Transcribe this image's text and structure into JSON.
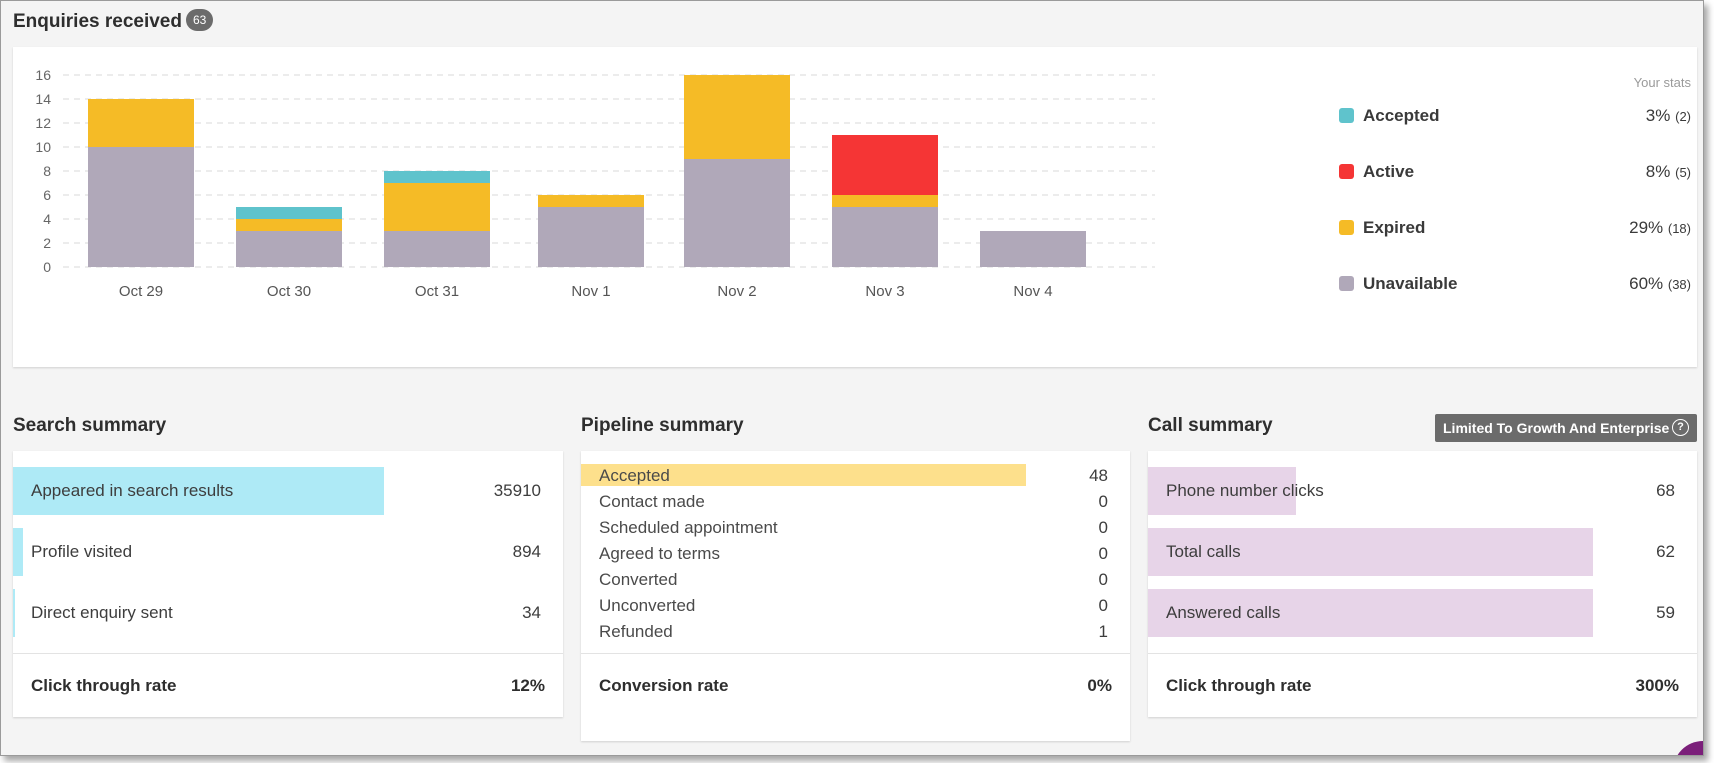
{
  "enquiries": {
    "title": "Enquiries received",
    "count": "63"
  },
  "chart_data": {
    "type": "bar",
    "stacked": true,
    "categories": [
      "Oct 29",
      "Oct 30",
      "Oct 31",
      "Nov 1",
      "Nov 2",
      "Nov 3",
      "Nov 4"
    ],
    "series": [
      {
        "name": "Unavailable",
        "color": "#b0a8b9",
        "values": [
          10,
          3,
          3,
          5,
          9,
          5,
          3
        ]
      },
      {
        "name": "Expired",
        "color": "#f5bb26",
        "values": [
          4,
          1,
          4,
          1,
          7,
          1,
          0
        ]
      },
      {
        "name": "Active",
        "color": "#f53535",
        "values": [
          0,
          0,
          0,
          0,
          0,
          5,
          0
        ]
      },
      {
        "name": "Accepted",
        "color": "#5fc3cc",
        "values": [
          0,
          1,
          1,
          0,
          0,
          0,
          0
        ]
      }
    ],
    "ylim": [
      0,
      16
    ],
    "yticks": [
      0,
      2,
      4,
      6,
      8,
      10,
      12,
      14,
      16
    ],
    "grid": true,
    "xlabel": "",
    "ylabel": ""
  },
  "stats": {
    "header": "Your stats",
    "items": [
      {
        "label": "Accepted",
        "color": "#5fc3cc",
        "percent": "3%",
        "count": "(2)"
      },
      {
        "label": "Active",
        "color": "#f53535",
        "percent": "8%",
        "count": "(5)"
      },
      {
        "label": "Expired",
        "color": "#f5bb26",
        "percent": "29%",
        "count": "(18)"
      },
      {
        "label": "Unavailable",
        "color": "#b0a8b9",
        "percent": "60%",
        "count": "(38)"
      }
    ]
  },
  "search_summary": {
    "title": "Search summary",
    "rows": [
      {
        "label": "Appeared in search results",
        "value": "35910",
        "fill": 0.675
      },
      {
        "label": "Profile visited",
        "value": "894",
        "fill": 0.018
      },
      {
        "label": "Direct enquiry sent",
        "value": "34",
        "fill": 0.004
      }
    ],
    "bar_color": "#aeeaf6",
    "footer_label": "Click through rate",
    "footer_value": "12%"
  },
  "pipeline_summary": {
    "title": "Pipeline summary",
    "rows": [
      {
        "label": "Accepted",
        "value": "48",
        "fill": 0.81
      },
      {
        "label": "Contact made",
        "value": "0",
        "fill": 0
      },
      {
        "label": "Scheduled appointment",
        "value": "0",
        "fill": 0
      },
      {
        "label": "Agreed to terms",
        "value": "0",
        "fill": 0
      },
      {
        "label": "Converted",
        "value": "0",
        "fill": 0
      },
      {
        "label": "Unconverted",
        "value": "0",
        "fill": 0
      },
      {
        "label": "Refunded",
        "value": "1",
        "fill": 0
      }
    ],
    "footer_label": "Conversion rate",
    "footer_value": "0%"
  },
  "call_summary": {
    "title": "Call summary",
    "badge": "Limited To Growth And Enterprise",
    "rows": [
      {
        "label": "Phone number clicks",
        "value": "68",
        "fill": 0.27
      },
      {
        "label": "Total calls",
        "value": "62",
        "fill": 0.81
      },
      {
        "label": "Answered calls",
        "value": "59",
        "fill": 0.81
      }
    ],
    "bar_color": "#e7d4e8",
    "footer_label": "Click through rate",
    "footer_value": "300%"
  }
}
